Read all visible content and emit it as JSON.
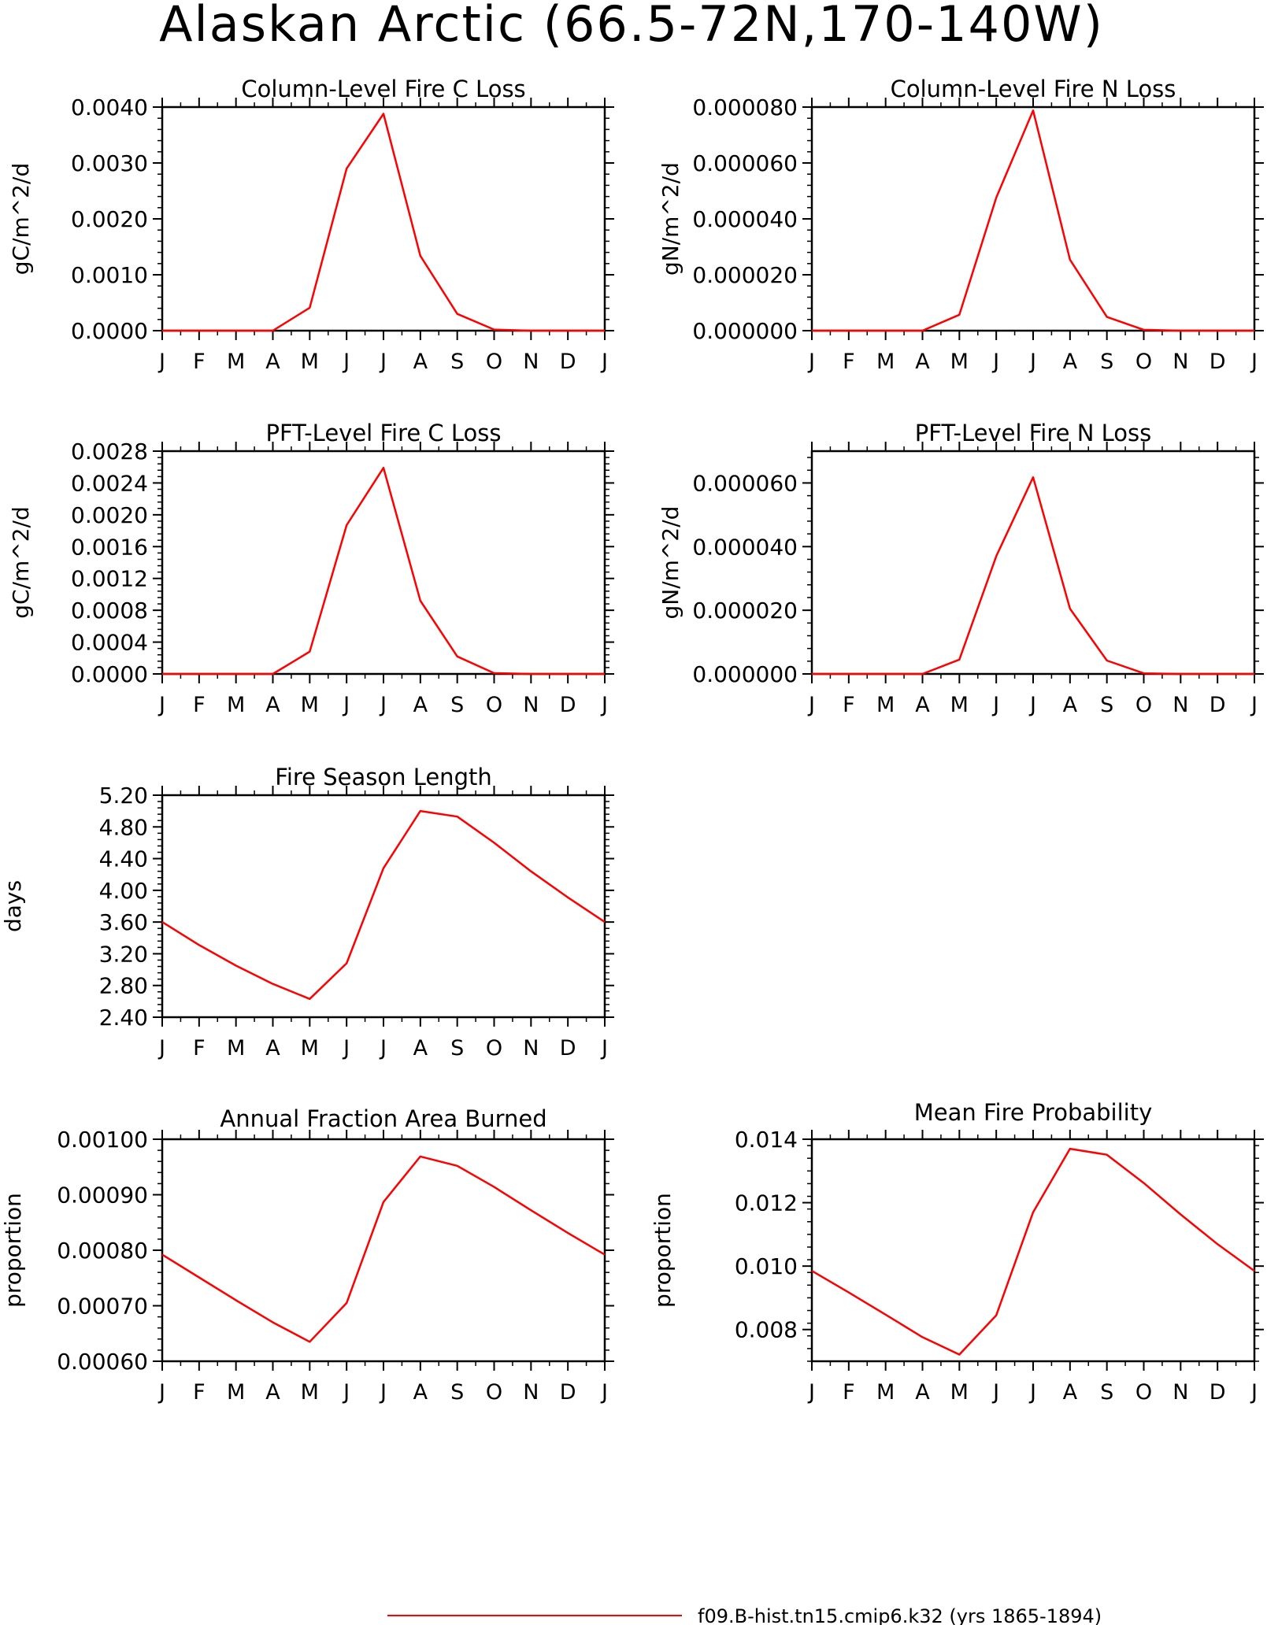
{
  "figure_title": "Alaskan Arctic (66.5-72N,170-140W)",
  "months": [
    "J",
    "F",
    "M",
    "A",
    "M",
    "J",
    "J",
    "A",
    "S",
    "O",
    "N",
    "D",
    "J"
  ],
  "legend": {
    "label": "f09.B-hist.tn15.cmip6.k32 (yrs 1865-1894)",
    "color": "#ff0000"
  },
  "series_color": "#ff0000",
  "chart_data": [
    {
      "type": "line",
      "title": "Column-Level Fire C Loss",
      "ylabel": "gC/m^2/d",
      "xlabel": "",
      "categories": [
        "J",
        "F",
        "M",
        "A",
        "M",
        "J",
        "J",
        "A",
        "S",
        "O",
        "N",
        "D",
        "J"
      ],
      "ylim": [
        0,
        0.004
      ],
      "ytick_values": [
        0,
        0.001,
        0.002,
        0.003,
        0.004
      ],
      "ytick_labels": [
        "0.0000",
        "0.0010",
        "0.0020",
        "0.0030",
        "0.0040"
      ],
      "values": [
        0,
        0,
        0,
        0,
        0.00041,
        0.0029,
        0.00388,
        0.00134,
        0.0003,
        2e-05,
        0,
        0,
        0
      ]
    },
    {
      "type": "line",
      "title": "Column-Level Fire N Loss",
      "ylabel": "gN/m^2/d",
      "xlabel": "",
      "categories": [
        "J",
        "F",
        "M",
        "A",
        "M",
        "J",
        "J",
        "A",
        "S",
        "O",
        "N",
        "D",
        "J"
      ],
      "ylim": [
        0,
        8e-05
      ],
      "ytick_values": [
        0,
        2e-05,
        4e-05,
        6e-05,
        8e-05
      ],
      "ytick_labels": [
        "0.000000",
        "0.000020",
        "0.000040",
        "0.000060",
        "0.000080"
      ],
      "values": [
        0,
        0,
        0,
        0,
        5.7e-06,
        4.76e-05,
        7.88e-05,
        2.54e-05,
        4.9e-06,
        3e-07,
        0,
        0,
        0
      ]
    },
    {
      "type": "line",
      "title": "PFT-Level Fire C Loss",
      "ylabel": "gC/m^2/d",
      "xlabel": "",
      "categories": [
        "J",
        "F",
        "M",
        "A",
        "M",
        "J",
        "J",
        "A",
        "S",
        "O",
        "N",
        "D",
        "J"
      ],
      "ylim": [
        0,
        0.0028
      ],
      "ytick_values": [
        0,
        0.0004,
        0.0008,
        0.0012,
        0.0016,
        0.002,
        0.0024,
        0.0028
      ],
      "ytick_labels": [
        "0.0000",
        "0.0004",
        "0.0008",
        "0.0012",
        "0.0016",
        "0.0020",
        "0.0024",
        "0.0028"
      ],
      "values": [
        0,
        0,
        0,
        0,
        0.00028,
        0.00187,
        0.00259,
        0.00092,
        0.00022,
        1e-05,
        0,
        0,
        0
      ]
    },
    {
      "type": "line",
      "title": "PFT-Level Fire N Loss",
      "ylabel": "gN/m^2/d",
      "xlabel": "",
      "categories": [
        "J",
        "F",
        "M",
        "A",
        "M",
        "J",
        "J",
        "A",
        "S",
        "O",
        "N",
        "D",
        "J"
      ],
      "ylim": [
        0,
        7e-05
      ],
      "ytick_values": [
        0,
        2e-05,
        4e-05,
        6e-05
      ],
      "ytick_labels": [
        "0.000000",
        "0.000020",
        "0.000040",
        "0.000060"
      ],
      "values": [
        0,
        0,
        0,
        0,
        4.5e-06,
        3.7e-05,
        6.18e-05,
        2.05e-05,
        4.2e-06,
        2e-07,
        0,
        0,
        0
      ]
    },
    {
      "type": "line",
      "title": "Fire Season Length",
      "ylabel": "days",
      "xlabel": "",
      "categories": [
        "J",
        "F",
        "M",
        "A",
        "M",
        "J",
        "J",
        "A",
        "S",
        "O",
        "N",
        "D",
        "J"
      ],
      "ylim": [
        2.4,
        5.2
      ],
      "ytick_values": [
        2.4,
        2.8,
        3.2,
        3.6,
        4.0,
        4.4,
        4.8,
        5.2
      ],
      "ytick_labels": [
        "2.40",
        "2.80",
        "3.20",
        "3.60",
        "4.00",
        "4.40",
        "4.80",
        "5.20"
      ],
      "values": [
        3.6,
        3.31,
        3.05,
        2.82,
        2.63,
        3.08,
        4.28,
        5.0,
        4.93,
        4.6,
        4.24,
        3.91,
        3.6
      ]
    },
    {
      "type": "line",
      "title": "Annual Fraction Area Burned",
      "ylabel": "proportion",
      "xlabel": "",
      "categories": [
        "J",
        "F",
        "M",
        "A",
        "M",
        "J",
        "J",
        "A",
        "S",
        "O",
        "N",
        "D",
        "J"
      ],
      "ylim": [
        0.0006,
        0.001
      ],
      "ytick_values": [
        0.0006,
        0.0007,
        0.0008,
        0.0009,
        0.001
      ],
      "ytick_labels": [
        "0.00060",
        "0.00070",
        "0.00080",
        "0.00090",
        "0.00100"
      ],
      "values": [
        0.000792,
        0.000751,
        0.00071,
        0.00067,
        0.000635,
        0.000705,
        0.000887,
        0.000969,
        0.000952,
        0.000914,
        0.000872,
        0.000831,
        0.000792
      ]
    },
    {
      "type": "line",
      "title": "Mean Fire Probability",
      "ylabel": "proportion",
      "xlabel": "",
      "categories": [
        "J",
        "F",
        "M",
        "A",
        "M",
        "J",
        "J",
        "A",
        "S",
        "O",
        "N",
        "D",
        "J"
      ],
      "ylim": [
        0.007,
        0.014
      ],
      "ytick_values": [
        0.008,
        0.01,
        0.012,
        0.014
      ],
      "ytick_labels": [
        "0.008",
        "0.010",
        "0.012",
        "0.014"
      ],
      "values": [
        0.00985,
        0.00917,
        0.00847,
        0.00776,
        0.00721,
        0.00845,
        0.0117,
        0.0137,
        0.01351,
        0.01262,
        0.01163,
        0.01069,
        0.00985
      ]
    }
  ]
}
